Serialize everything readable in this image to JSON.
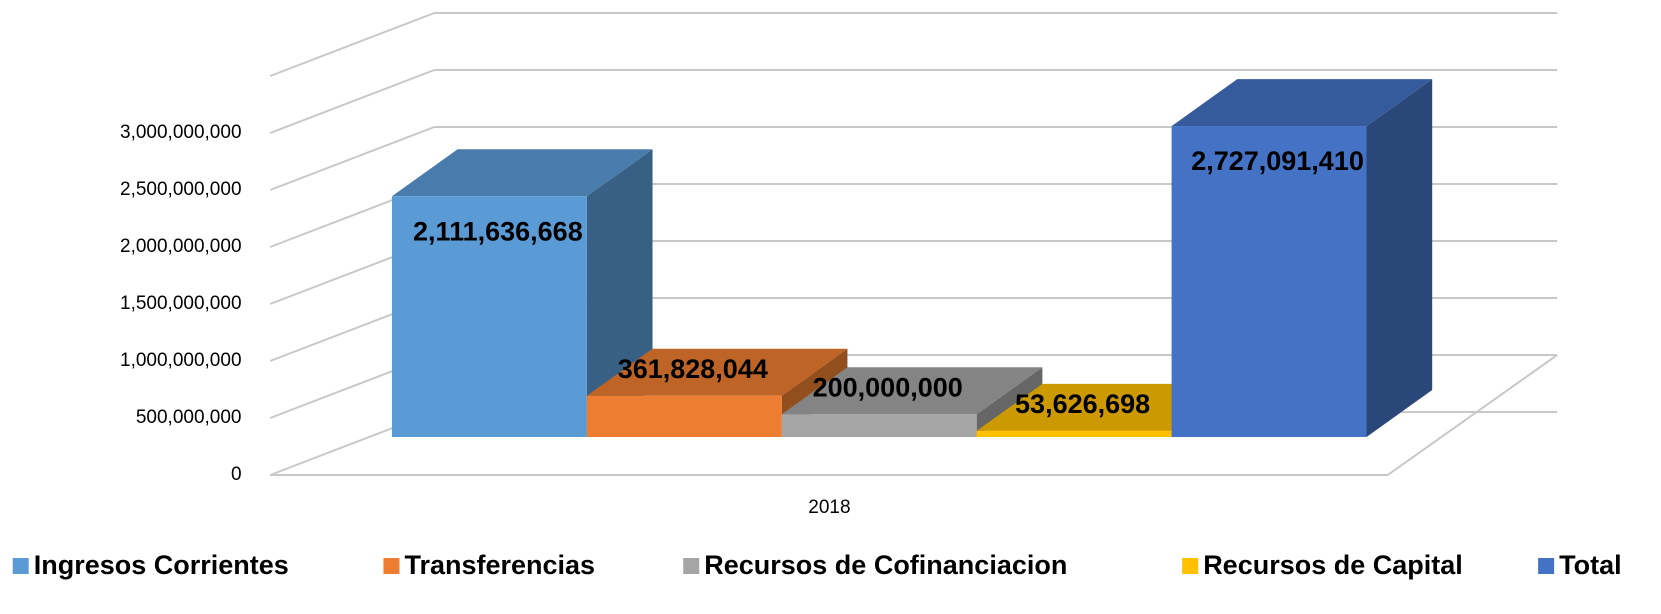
{
  "chart_data": {
    "type": "bar3d",
    "categories": [
      "2018"
    ],
    "series": [
      {
        "name": "Ingresos Corrientes",
        "color": "#5b9bd5",
        "values": [
          2111636668
        ],
        "value_labels": [
          "2,111,636,668"
        ]
      },
      {
        "name": "Transferencias",
        "color": "#ed7d31",
        "values": [
          361828044
        ],
        "value_labels": [
          "361,828,044"
        ]
      },
      {
        "name": "Recursos de Cofinanciacion",
        "color": "#a5a5a5",
        "values": [
          200000000
        ],
        "value_labels": [
          "200,000,000"
        ]
      },
      {
        "name": "Recursos de Capital",
        "color": "#ffc000",
        "values": [
          53626698
        ],
        "value_labels": [
          "53,626,698"
        ]
      },
      {
        "name": "Total",
        "color": "#4472c4",
        "values": [
          2727091410
        ],
        "value_labels": [
          "2,727,091,410"
        ]
      }
    ],
    "ylim": [
      0,
      3500000000
    ],
    "yticks": [
      0,
      {
        "value": 500000000,
        "label": "500,000,000"
      },
      {
        "value": 1000000000,
        "label": "1,000,000,000"
      },
      {
        "value": 1500000000,
        "label": "1,500,000,000"
      },
      {
        "value": 2000000000,
        "label": "2,000,000,000"
      },
      {
        "value": 2500000000,
        "label": "2,500,000,000"
      },
      {
        "value": 3000000000,
        "label": "3,000,000,000"
      }
    ],
    "grid": true,
    "legend": "bottom"
  }
}
